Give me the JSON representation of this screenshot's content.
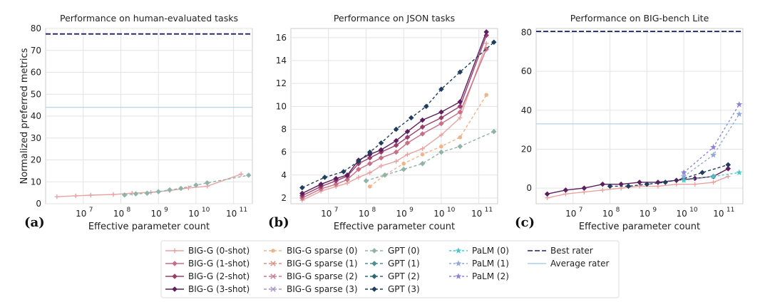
{
  "chart_data": [
    {
      "type": "line",
      "panel_label": "(a)",
      "title": "Performance on human-evaluated tasks",
      "xlabel": "Effective parameter count",
      "ylabel": "Normalized preferred metrics",
      "xscale": "log",
      "xlim": [
        6.0,
        11.5
      ],
      "ylim": [
        0,
        80
      ],
      "yticks": [
        "0",
        "10",
        "20",
        "30",
        "40",
        "50",
        "60",
        "70",
        "80"
      ],
      "xticks": [
        "10",
        "10",
        "10",
        "10",
        "10"
      ],
      "xtick_exponents": [
        "7",
        "8",
        "9",
        "10",
        "11"
      ],
      "best_rater": 77.5,
      "average_rater": 44,
      "series": [
        {
          "name": "BIG-G (0-shot)",
          "x": [
            6.3,
            6.8,
            7.2,
            7.8,
            8.3,
            8.8,
            9.3,
            9.8,
            10.3,
            11.2
          ],
          "y": [
            3.2,
            3.6,
            3.9,
            4.2,
            4.8,
            5.2,
            6.0,
            7.2,
            8.0,
            13.5
          ]
        },
        {
          "name": "GPT (0)",
          "x": [
            8.1,
            8.4,
            8.7,
            9.0,
            9.3,
            9.6,
            10.0,
            10.3,
            11.4
          ],
          "y": [
            4.0,
            4.5,
            4.8,
            5.5,
            6.3,
            7.0,
            8.5,
            9.5,
            13.0
          ]
        }
      ]
    },
    {
      "type": "line",
      "panel_label": "(b)",
      "title": "Performance on JSON tasks",
      "xlabel": "Effective parameter count",
      "xscale": "log",
      "xlim": [
        6.0,
        11.5
      ],
      "ylim": [
        1.5,
        16.8
      ],
      "yticks": [
        "2",
        "4",
        "6",
        "8",
        "10",
        "12",
        "14",
        "16"
      ],
      "xticks": [
        "10",
        "10",
        "10",
        "10",
        "10"
      ],
      "xtick_exponents": [
        "7",
        "8",
        "9",
        "10",
        "11"
      ],
      "series": [
        {
          "name": "BIG-G (0-shot)",
          "x": [
            6.3,
            6.8,
            7.2,
            7.5,
            7.8,
            8.1,
            8.4,
            8.8,
            9.1,
            9.5,
            10.0,
            10.5,
            11.2
          ],
          "y": [
            1.8,
            2.6,
            3.0,
            3.3,
            3.8,
            4.2,
            4.8,
            5.2,
            5.8,
            6.3,
            7.5,
            9.0,
            15.5
          ]
        },
        {
          "name": "BIG-G (1-shot)",
          "x": [
            6.3,
            6.8,
            7.2,
            7.5,
            7.8,
            8.1,
            8.4,
            8.8,
            9.1,
            9.5,
            10.0,
            10.5,
            11.2
          ],
          "y": [
            2.0,
            2.8,
            3.2,
            3.6,
            4.5,
            5.0,
            5.5,
            6.0,
            6.8,
            7.6,
            8.5,
            9.5,
            15.0
          ]
        },
        {
          "name": "BIG-G (2-shot)",
          "x": [
            6.3,
            6.8,
            7.2,
            7.5,
            7.8,
            8.1,
            8.4,
            8.8,
            9.1,
            9.5,
            10.0,
            10.5,
            11.2
          ],
          "y": [
            2.2,
            3.0,
            3.5,
            3.9,
            5.0,
            5.5,
            6.0,
            6.6,
            7.3,
            8.2,
            9.0,
            10.0,
            16.2
          ]
        },
        {
          "name": "BIG-G (3-shot)",
          "x": [
            6.3,
            6.8,
            7.2,
            7.5,
            7.8,
            8.1,
            8.4,
            8.8,
            9.1,
            9.5,
            10.0,
            10.5,
            11.2
          ],
          "y": [
            2.4,
            3.2,
            3.7,
            4.0,
            5.3,
            5.8,
            6.2,
            7.0,
            7.8,
            8.8,
            9.5,
            10.4,
            16.5
          ]
        },
        {
          "name": "BIG-G sparse (0)",
          "x": [
            8.1,
            8.5,
            9.0,
            9.5,
            10.0,
            10.5,
            11.2
          ],
          "y": [
            3.0,
            4.0,
            5.0,
            5.8,
            6.5,
            7.3,
            11.0
          ]
        },
        {
          "name": "GPT (3)",
          "x": [
            6.3,
            6.9,
            7.4,
            7.8,
            8.1,
            8.4,
            8.8,
            9.2,
            9.6,
            10.0,
            10.5,
            11.4
          ],
          "y": [
            2.9,
            3.8,
            4.3,
            5.2,
            6.0,
            6.8,
            8.0,
            9.0,
            10.0,
            11.5,
            13.0,
            15.6
          ]
        },
        {
          "name": "GPT (0)",
          "x": [
            8.0,
            8.5,
            9.0,
            9.5,
            10.0,
            10.5,
            11.4
          ],
          "y": [
            3.5,
            4.0,
            4.5,
            5.0,
            6.0,
            6.5,
            7.8
          ]
        }
      ]
    },
    {
      "type": "line",
      "panel_label": "(c)",
      "title": "Performance on BIG-bench Lite",
      "xlabel": "Effective parameter count",
      "xscale": "log",
      "xlim": [
        6.0,
        11.6
      ],
      "ylim": [
        -8,
        82
      ],
      "yticks": [
        "0",
        "20",
        "40",
        "60",
        "80"
      ],
      "xticks": [
        "10",
        "10",
        "10",
        "10",
        "10"
      ],
      "xtick_exponents": [
        "7",
        "8",
        "9",
        "10",
        "11"
      ],
      "best_rater": 80.5,
      "average_rater": 33,
      "series": [
        {
          "name": "BIG-G (0-shot)",
          "x": [
            6.3,
            6.8,
            7.3,
            7.8,
            8.3,
            8.8,
            9.3,
            9.8,
            10.3,
            10.8,
            11.2
          ],
          "y": [
            -5,
            -3,
            -2,
            -1,
            0,
            1,
            1,
            2,
            2,
            3,
            6
          ]
        },
        {
          "name": "BIG-G (3-shot)",
          "x": [
            6.3,
            6.8,
            7.3,
            7.8,
            8.3,
            8.8,
            9.3,
            9.8,
            10.3,
            10.8,
            11.2
          ],
          "y": [
            -3,
            -1,
            0,
            2,
            2,
            3,
            3,
            4,
            5,
            6,
            10
          ]
        },
        {
          "name": "GPT (3)",
          "x": [
            8.0,
            8.5,
            9.0,
            9.5,
            10.0,
            10.5,
            11.2
          ],
          "y": [
            1,
            1,
            2,
            3,
            5,
            8,
            12
          ]
        },
        {
          "name": "PaLM (0)",
          "x": [
            10.0,
            10.8,
            11.5
          ],
          "y": [
            4,
            6,
            8
          ]
        },
        {
          "name": "PaLM (1)",
          "x": [
            10.0,
            10.8,
            11.5
          ],
          "y": [
            6,
            17,
            38
          ]
        },
        {
          "name": "PaLM (2)",
          "x": [
            10.0,
            10.8,
            11.5
          ],
          "y": [
            8,
            21,
            43
          ]
        }
      ]
    }
  ],
  "legend": {
    "columns": [
      [
        {
          "label": "BIG-G (0-shot)",
          "color": "#e8a3a0",
          "dash": "",
          "marker": "plus"
        },
        {
          "label": "BIG-G (1-shot)",
          "color": "#c76f86",
          "dash": "",
          "marker": "diamond"
        },
        {
          "label": "BIG-G (2-shot)",
          "color": "#9b3c6b",
          "dash": "",
          "marker": "diamond"
        },
        {
          "label": "BIG-G (3-shot)",
          "color": "#5c1e5e",
          "dash": "",
          "marker": "diamond"
        }
      ],
      [
        {
          "label": "BIG-G sparse (0)",
          "color": "#f0b48c",
          "dash": "4,3",
          "marker": "circle"
        },
        {
          "label": "BIG-G sparse (1)",
          "color": "#d98f7e",
          "dash": "4,3",
          "marker": "x"
        },
        {
          "label": "BIG-G sparse (2)",
          "color": "#c47a88",
          "dash": "4,3",
          "marker": "x"
        },
        {
          "label": "BIG-G sparse (3)",
          "color": "#a992c0",
          "dash": "4,3",
          "marker": "x"
        }
      ],
      [
        {
          "label": "GPT (0)",
          "color": "#8fb3a8",
          "dash": "4,3",
          "marker": "diamond"
        },
        {
          "label": "GPT (1)",
          "color": "#4f8f93",
          "dash": "4,3",
          "marker": "diamond"
        },
        {
          "label": "GPT (2)",
          "color": "#2e6775",
          "dash": "4,3",
          "marker": "diamond"
        },
        {
          "label": "GPT (3)",
          "color": "#1f3d5c",
          "dash": "4,3",
          "marker": "diamond"
        }
      ],
      [
        {
          "label": "PaLM (0)",
          "color": "#4fc6c6",
          "dash": "3,3",
          "marker": "star"
        },
        {
          "label": "PaLM (1)",
          "color": "#94a8d6",
          "dash": "3,3",
          "marker": "star"
        },
        {
          "label": "PaLM (2)",
          "color": "#8c84d6",
          "dash": "3,3",
          "marker": "star"
        }
      ],
      [
        {
          "label": "Best rater",
          "color": "#1b1f5e",
          "dash": "7,3",
          "marker": "none"
        },
        {
          "label": "Average rater",
          "color": "#a8d0e6",
          "dash": "",
          "marker": "none"
        }
      ]
    ]
  },
  "series_styles": {
    "BIG-G (0-shot)": {
      "color": "#e8a3a0",
      "dash": "",
      "marker": "plus"
    },
    "BIG-G (1-shot)": {
      "color": "#c76f86",
      "dash": "",
      "marker": "diamond"
    },
    "BIG-G (2-shot)": {
      "color": "#9b3c6b",
      "dash": "",
      "marker": "diamond"
    },
    "BIG-G (3-shot)": {
      "color": "#5c1e5e",
      "dash": "",
      "marker": "diamond"
    },
    "BIG-G sparse (0)": {
      "color": "#f0b48c",
      "dash": "4,3",
      "marker": "circle"
    },
    "GPT (0)": {
      "color": "#8fb3a8",
      "dash": "4,3",
      "marker": "diamond"
    },
    "GPT (3)": {
      "color": "#1f3d5c",
      "dash": "4,3",
      "marker": "diamond"
    },
    "PaLM (0)": {
      "color": "#4fc6c6",
      "dash": "3,3",
      "marker": "star"
    },
    "PaLM (1)": {
      "color": "#94a8d6",
      "dash": "3,3",
      "marker": "star"
    },
    "PaLM (2)": {
      "color": "#8c84d6",
      "dash": "3,3",
      "marker": "star"
    }
  }
}
